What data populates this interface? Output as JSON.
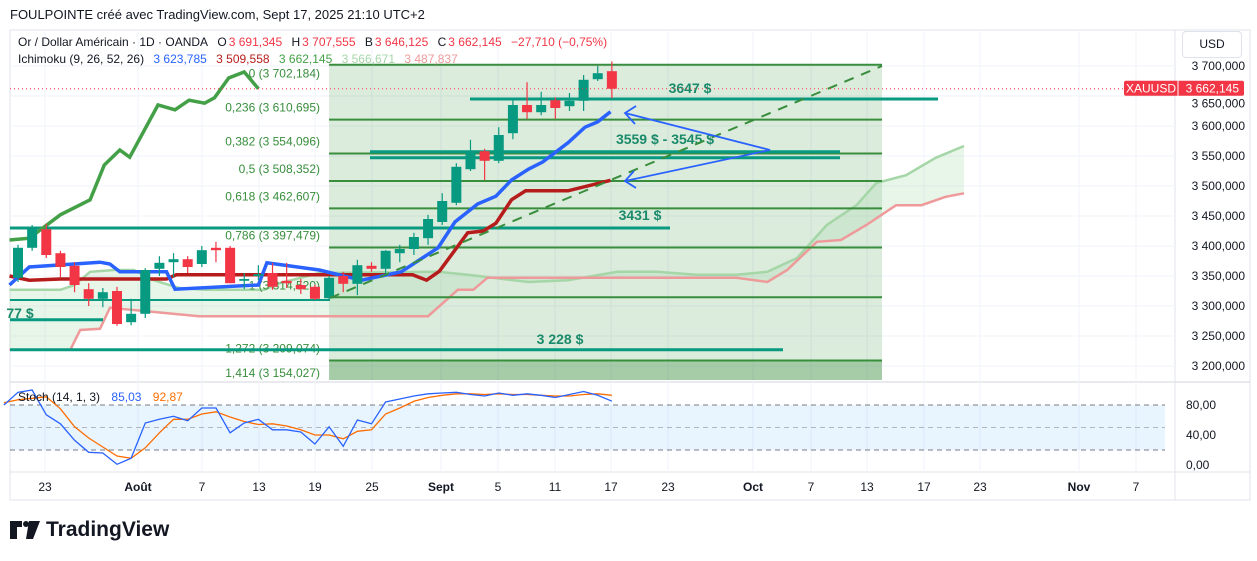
{
  "header": {
    "credit": "FOULPOINTE créé avec TradingView.com, Sept 17, 2025 21:10 UTC+2"
  },
  "legend": {
    "symbol": "Or / Dollar Américain · 1D · OANDA",
    "o_label": "O",
    "o": "3 691,345",
    "h_label": "H",
    "h": "3 707,555",
    "l_label": "B",
    "l": "3 646,125",
    "c_label": "C",
    "c": "3 662,145",
    "change": "−27,710 (−0,75%)",
    "ichimoku_label": "Ichimoku (9, 26, 52, 26)",
    "ichimoku_values": [
      "3 623,785",
      "3 509,558",
      "3 662,145",
      "3 566,671",
      "3 487,837"
    ],
    "stoch_label": "Stoch (14, 1, 3)",
    "stoch_k": "85,03",
    "stoch_d": "92,87"
  },
  "price_scale": {
    "currency": "USD",
    "ticks": [
      "3 700,000",
      "3 650,000",
      "3 600,000",
      "3 550,000",
      "3 500,000",
      "3 450,000",
      "3 400,000",
      "3 350,000",
      "3 300,000",
      "3 250,000",
      "3 200,000"
    ],
    "tick_values": [
      3700,
      3650,
      3600,
      3550,
      3500,
      3450,
      3400,
      3350,
      3300,
      3250,
      3200
    ]
  },
  "price_badge": {
    "symbol": "XAUUSD",
    "price": "3 662,145",
    "value": 3662.145
  },
  "stoch_scale": {
    "ticks": [
      "80,00",
      "40,00",
      "0,00"
    ],
    "tick_values": [
      80,
      40,
      0
    ]
  },
  "time_axis": [
    {
      "label": "23",
      "bold": false
    },
    {
      "label": "Août",
      "bold": true
    },
    {
      "label": "7",
      "bold": false
    },
    {
      "label": "13",
      "bold": false
    },
    {
      "label": "19",
      "bold": false
    },
    {
      "label": "25",
      "bold": false
    },
    {
      "label": "Sept",
      "bold": true
    },
    {
      "label": "5",
      "bold": false
    },
    {
      "label": "11",
      "bold": false
    },
    {
      "label": "17",
      "bold": false
    },
    {
      "label": "23",
      "bold": false
    },
    {
      "label": "Oct",
      "bold": true
    },
    {
      "label": "7",
      "bold": false
    },
    {
      "label": "13",
      "bold": false
    },
    {
      "label": "17",
      "bold": false
    },
    {
      "label": "23",
      "bold": false
    },
    {
      "label": "Nov",
      "bold": true
    },
    {
      "label": "7",
      "bold": false
    }
  ],
  "fib_levels": [
    {
      "label": "0 (3 702,184)",
      "price": 3702.184
    },
    {
      "label": "0,236 (3 610,695)",
      "price": 3610.695
    },
    {
      "label": "0,382 (3 554,096)",
      "price": 3554.096
    },
    {
      "label": "0,5 (3 508,352)",
      "price": 3508.352
    },
    {
      "label": "0,618 (3 462,607)",
      "price": 3462.607
    },
    {
      "label": "0,786 (3 397,479)",
      "price": 3397.479
    },
    {
      "label": "1 (3 314,520)",
      "price": 3314.52
    },
    {
      "label": "1,272 (3 209,074)",
      "price": 3209.074
    },
    {
      "label": "1,414 (3 154,027)",
      "price": 3154.027
    }
  ],
  "annotations": [
    {
      "label": "3647 $",
      "price": 3645
    },
    {
      "label": "3559 $ - 3545 $",
      "price": 3557,
      "price2": 3547
    },
    {
      "label": "3431 $",
      "price": 3430
    },
    {
      "label": "77 $",
      "price": 3277
    },
    {
      "label": "3 228 $",
      "price": 3227
    }
  ],
  "colors": {
    "up": "#089981",
    "down": "#f23645",
    "tenkan": "#2962ff",
    "kijun": "#b71c1c",
    "chikou": "#43a047",
    "spanA": "#a5d6a7",
    "spanB": "#ef9a9a",
    "fib": "#388e3c",
    "level": "#089981",
    "stochK": "#2962ff",
    "stochD": "#ff6d00"
  },
  "chart_data": {
    "type": "candlestick",
    "symbol": "XAUUSD",
    "ylim": [
      3175,
      3725
    ],
    "candles": [
      [
        3347,
        3402,
        3340,
        3397
      ],
      [
        3397,
        3435,
        3392,
        3430
      ],
      [
        3428,
        3437,
        3380,
        3385
      ],
      [
        3388,
        3392,
        3348,
        3365
      ],
      [
        3367,
        3373,
        3323,
        3335
      ],
      [
        3328,
        3338,
        3300,
        3312
      ],
      [
        3312,
        3330,
        3298,
        3323
      ],
      [
        3325,
        3332,
        3267,
        3270
      ],
      [
        3273,
        3312,
        3268,
        3287
      ],
      [
        3287,
        3363,
        3280,
        3360
      ],
      [
        3362,
        3383,
        3350,
        3372
      ],
      [
        3373,
        3388,
        3348,
        3378
      ],
      [
        3378,
        3383,
        3355,
        3365
      ],
      [
        3370,
        3400,
        3365,
        3393
      ],
      [
        3397,
        3407,
        3373,
        3393
      ],
      [
        3397,
        3400,
        3338,
        3338
      ],
      [
        3342,
        3355,
        3328,
        3345
      ],
      [
        3350,
        3368,
        3343,
        3353
      ],
      [
        3355,
        3372,
        3327,
        3332
      ],
      [
        3342,
        3372,
        3330,
        3338
      ],
      [
        3335,
        3345,
        3320,
        3328
      ],
      [
        3332,
        3335,
        3310,
        3312
      ],
      [
        3313,
        3350,
        3310,
        3347
      ],
      [
        3350,
        3357,
        3323,
        3337
      ],
      [
        3337,
        3377,
        3318,
        3368
      ],
      [
        3367,
        3373,
        3357,
        3362
      ],
      [
        3362,
        3393,
        3352,
        3392
      ],
      [
        3388,
        3402,
        3373,
        3395
      ],
      [
        3395,
        3422,
        3385,
        3415
      ],
      [
        3413,
        3452,
        3402,
        3445
      ],
      [
        3440,
        3488,
        3435,
        3475
      ],
      [
        3472,
        3538,
        3468,
        3532
      ],
      [
        3528,
        3577,
        3525,
        3558
      ],
      [
        3558,
        3562,
        3510,
        3542
      ],
      [
        3542,
        3598,
        3538,
        3585
      ],
      [
        3588,
        3647,
        3578,
        3635
      ],
      [
        3635,
        3673,
        3612,
        3623
      ],
      [
        3623,
        3657,
        3618,
        3635
      ],
      [
        3643,
        3648,
        3612,
        3630
      ],
      [
        3633,
        3655,
        3625,
        3642
      ],
      [
        3642,
        3685,
        3625,
        3677
      ],
      [
        3678,
        3700,
        3675,
        3688
      ],
      [
        3691.345,
        3707.555,
        3646.125,
        3662.145
      ]
    ],
    "ichimoku": {
      "tenkan": [
        [
          -0.6,
          3335
        ],
        [
          0.8,
          3365
        ],
        [
          5.8,
          3373
        ],
        [
          6.5,
          3370
        ],
        [
          7.2,
          3357
        ],
        [
          10.5,
          3357
        ],
        [
          11.1,
          3328
        ],
        [
          17,
          3335
        ],
        [
          17.6,
          3372
        ],
        [
          21.3,
          3360
        ],
        [
          24.3,
          3343
        ],
        [
          27.1,
          3357
        ],
        [
          29.7,
          3397
        ],
        [
          30.9,
          3440
        ],
        [
          32.5,
          3470
        ],
        [
          33.8,
          3483
        ],
        [
          34.9,
          3510
        ],
        [
          36.1,
          3528
        ],
        [
          37.1,
          3540
        ],
        [
          38.9,
          3572
        ],
        [
          40.1,
          3598
        ],
        [
          41,
          3607
        ],
        [
          41.9,
          3623.785
        ]
      ],
      "kijun": [
        [
          -0.6,
          3350
        ],
        [
          0.8,
          3343
        ],
        [
          3,
          3345
        ],
        [
          10.5,
          3345
        ],
        [
          11.2,
          3352
        ],
        [
          21.3,
          3352
        ],
        [
          27.9,
          3352
        ],
        [
          28.9,
          3343
        ],
        [
          29.8,
          3358
        ],
        [
          31.8,
          3422
        ],
        [
          32.9,
          3425
        ],
        [
          33.8,
          3438
        ],
        [
          34.9,
          3477
        ],
        [
          35.9,
          3492
        ],
        [
          38.9,
          3492
        ],
        [
          40.8,
          3503
        ],
        [
          41.9,
          3509.558
        ]
      ],
      "chikou": [
        [
          -0.6,
          3410
        ],
        [
          0.8,
          3413
        ],
        [
          3,
          3452
        ],
        [
          5.1,
          3477
        ],
        [
          6.1,
          3535
        ],
        [
          7.2,
          3560
        ],
        [
          7.9,
          3548
        ],
        [
          9.9,
          3635
        ],
        [
          11.1,
          3627
        ],
        [
          12.1,
          3643
        ],
        [
          13.2,
          3638
        ],
        [
          13.9,
          3647
        ],
        [
          14.9,
          3680
        ],
        [
          16,
          3690
        ],
        [
          17,
          3662.145
        ]
      ],
      "span_a": [
        [
          -0.6,
          3327
        ],
        [
          3,
          3327
        ],
        [
          4,
          3335
        ],
        [
          5.1,
          3357
        ],
        [
          6.8,
          3360
        ],
        [
          8.2,
          3360
        ],
        [
          9.6,
          3343
        ],
        [
          11.4,
          3330
        ],
        [
          13.2,
          3327
        ],
        [
          17.4,
          3327
        ],
        [
          18.5,
          3338
        ],
        [
          21.3,
          3355
        ],
        [
          29.7,
          3357
        ],
        [
          31.8,
          3352
        ],
        [
          36.1,
          3340
        ],
        [
          38.9,
          3343
        ],
        [
          42.4,
          3357
        ],
        [
          45.2,
          3357
        ],
        [
          48,
          3352
        ],
        [
          50.8,
          3352
        ],
        [
          53,
          3357
        ],
        [
          55.1,
          3380
        ],
        [
          57.2,
          3435
        ],
        [
          59.3,
          3468
        ],
        [
          60.7,
          3505
        ],
        [
          62.8,
          3518
        ],
        [
          64.9,
          3547
        ],
        [
          66.9,
          3566.671
        ]
      ],
      "span_b": [
        [
          -0.6,
          3227
        ],
        [
          3.7,
          3227
        ],
        [
          4.4,
          3260
        ],
        [
          5.8,
          3262
        ],
        [
          6.5,
          3297
        ],
        [
          12.8,
          3283
        ],
        [
          29,
          3283
        ],
        [
          31.1,
          3327
        ],
        [
          32.2,
          3327
        ],
        [
          33.2,
          3347
        ],
        [
          50.8,
          3347
        ],
        [
          53,
          3340
        ],
        [
          54.4,
          3360
        ],
        [
          56.5,
          3407
        ],
        [
          58.2,
          3410
        ],
        [
          60,
          3435
        ],
        [
          62.1,
          3468
        ],
        [
          63.9,
          3468
        ],
        [
          65.6,
          3482
        ],
        [
          66.9,
          3487.837
        ]
      ]
    },
    "stochastic": {
      "start_index": -1,
      "k": [
        80,
        97,
        100,
        67,
        55,
        33,
        17,
        16,
        1,
        9,
        56,
        61,
        65,
        59,
        76,
        76,
        43,
        56,
        61,
        47,
        47,
        44,
        28,
        51,
        25,
        60,
        55,
        84,
        88,
        92,
        95,
        96,
        97,
        94,
        92,
        96,
        93,
        95,
        93,
        90,
        94,
        98,
        93,
        85.03
      ],
      "d": [
        83,
        87,
        89,
        91,
        75,
        51,
        36,
        24,
        12,
        9,
        23,
        43,
        61,
        61,
        68,
        71,
        64,
        58,
        54,
        55,
        52,
        47,
        40,
        40,
        35,
        45,
        47,
        68,
        76,
        85,
        90,
        93,
        95,
        95,
        94,
        95,
        94,
        94,
        93,
        92,
        92,
        94,
        95,
        92.87
      ],
      "bands": [
        80,
        50,
        20
      ],
      "ylim": [
        0,
        100
      ]
    }
  },
  "logo": {
    "text": "TradingView"
  }
}
